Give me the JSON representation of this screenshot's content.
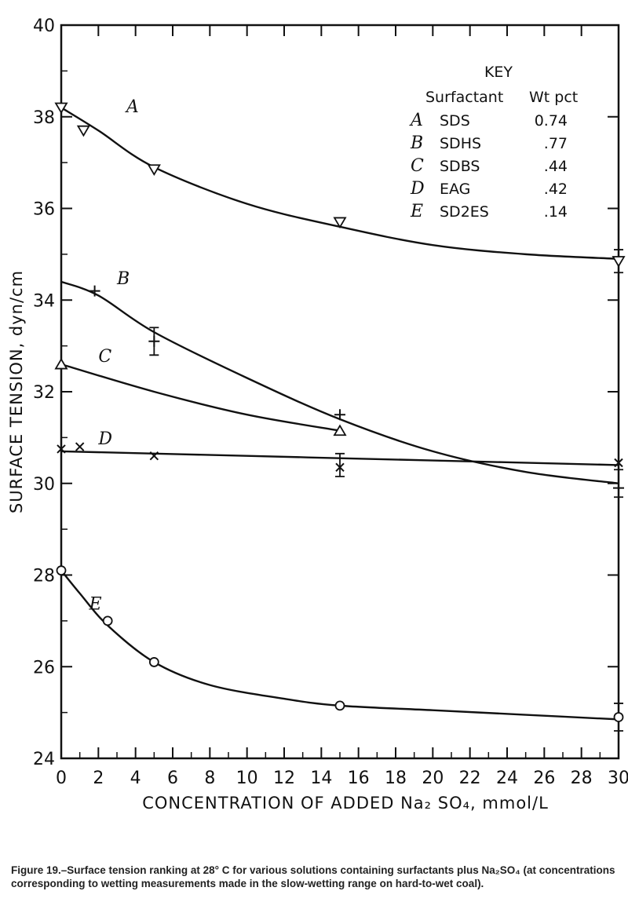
{
  "chart_data": {
    "type": "line",
    "xlabel": "CONCENTRATION OF ADDED Na₂ SO₄, mmol/L",
    "ylabel": "SURFACE TENSION, dyn/cm",
    "xlim": [
      0,
      30
    ],
    "ylim": [
      24,
      40
    ],
    "xticks": [
      "0",
      "2",
      "4",
      "6",
      "8",
      "10",
      "12",
      "14",
      "16",
      "18",
      "20",
      "22",
      "24",
      "26",
      "28",
      "30"
    ],
    "yticks": [
      "24",
      "26",
      "28",
      "30",
      "32",
      "34",
      "36",
      "38",
      "40"
    ],
    "grid": false,
    "legend": {
      "title": "KEY",
      "headers": [
        "Surfactant",
        "Wt pct"
      ],
      "placement": "top-right",
      "rows": [
        {
          "letter": "A",
          "name": "SDS",
          "wt": "0.74"
        },
        {
          "letter": "B",
          "name": "SDHS",
          "wt": ".77"
        },
        {
          "letter": "C",
          "name": "SDBS",
          "wt": ".44"
        },
        {
          "letter": "D",
          "name": "EAG",
          "wt": ".42"
        },
        {
          "letter": "E",
          "name": "SD2ES",
          "wt": ".14"
        }
      ]
    },
    "series": [
      {
        "name": "A",
        "marker": "down-triangle",
        "points": [
          [
            0,
            38.2
          ],
          [
            1.2,
            37.7
          ],
          [
            5,
            36.85
          ],
          [
            15,
            35.7
          ],
          [
            30,
            34.85
          ]
        ],
        "curve": [
          [
            0,
            38.2
          ],
          [
            2,
            37.7
          ],
          [
            5,
            36.9
          ],
          [
            10,
            36.1
          ],
          [
            15,
            35.6
          ],
          [
            20,
            35.2
          ],
          [
            25,
            35.0
          ],
          [
            30,
            34.9
          ]
        ],
        "errorbars": [
          {
            "x": 30,
            "lo": 34.6,
            "hi": 35.1
          }
        ],
        "label_pos": [
          3.5,
          38.1
        ]
      },
      {
        "name": "B",
        "marker": "plus",
        "points": [
          [
            1.8,
            34.2
          ],
          [
            5,
            33.1
          ],
          [
            15,
            31.5
          ],
          [
            30,
            29.9
          ]
        ],
        "curve": [
          [
            0,
            34.4
          ],
          [
            2,
            34.1
          ],
          [
            5,
            33.3
          ],
          [
            10,
            32.3
          ],
          [
            15,
            31.4
          ],
          [
            20,
            30.7
          ],
          [
            25,
            30.25
          ],
          [
            30,
            30.0
          ]
        ],
        "errorbars": [
          {
            "x": 5,
            "lo": 32.8,
            "hi": 33.4
          },
          {
            "x": 30,
            "lo": 29.7,
            "hi": 30.3
          }
        ],
        "label_pos": [
          3,
          34.35
        ]
      },
      {
        "name": "C",
        "marker": "up-triangle",
        "points": [
          [
            0,
            32.6
          ],
          [
            15,
            31.15
          ]
        ],
        "curve": [
          [
            0,
            32.6
          ],
          [
            5,
            32.0
          ],
          [
            10,
            31.5
          ],
          [
            15,
            31.15
          ]
        ],
        "errorbars": [],
        "label_pos": [
          2,
          32.65
        ]
      },
      {
        "name": "D",
        "marker": "x",
        "points": [
          [
            0,
            30.75
          ],
          [
            1,
            30.8
          ],
          [
            5,
            30.6
          ],
          [
            15,
            30.35
          ],
          [
            30,
            30.45
          ]
        ],
        "curve": [
          [
            0,
            30.7
          ],
          [
            10,
            30.6
          ],
          [
            20,
            30.5
          ],
          [
            30,
            30.4
          ]
        ],
        "errorbars": [
          {
            "x": 15,
            "lo": 30.15,
            "hi": 30.65
          }
        ],
        "label_pos": [
          2,
          30.85
        ]
      },
      {
        "name": "E",
        "marker": "circle",
        "points": [
          [
            0,
            28.1
          ],
          [
            2.5,
            27.0
          ],
          [
            5,
            26.1
          ],
          [
            15,
            25.15
          ],
          [
            30,
            24.9
          ]
        ],
        "curve": [
          [
            0,
            28.1
          ],
          [
            1,
            27.6
          ],
          [
            2.5,
            26.9
          ],
          [
            5,
            26.1
          ],
          [
            8,
            25.6
          ],
          [
            12,
            25.3
          ],
          [
            15,
            25.15
          ],
          [
            20,
            25.05
          ],
          [
            25,
            24.95
          ],
          [
            30,
            24.85
          ]
        ],
        "errorbars": [
          {
            "x": 30,
            "lo": 24.6,
            "hi": 25.2
          }
        ],
        "label_pos": [
          1.5,
          27.25
        ]
      }
    ]
  },
  "caption": "Figure 19.–Surface tension ranking at 28° C for various solutions containing surfactants plus Na₂SO₄ (at concentrations corresponding to wetting measurements made in the slow-wetting range on hard-to-wet coal)."
}
